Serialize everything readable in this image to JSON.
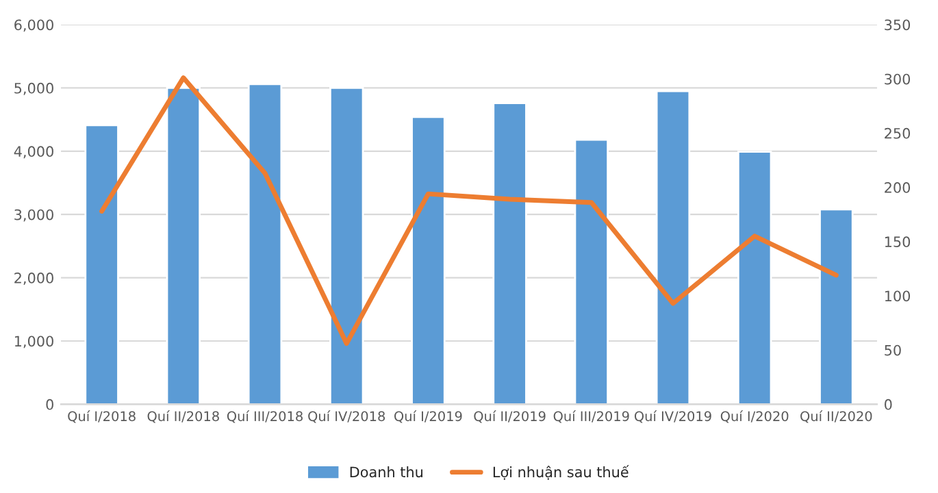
{
  "chart_data": {
    "type": "bar",
    "categories": [
      "Quí I/2018",
      "Quí II/2018",
      "Quí III/2018",
      "Quí IV/2018",
      "Quí I/2019",
      "Quí II/2019",
      "Quí III/2019",
      "Quí IV/2019",
      "Quí I/2020",
      "Quí II/2020"
    ],
    "series": [
      {
        "name": "Doanh thu",
        "color": "#5b9bd5",
        "values": [
          4410,
          5000,
          5060,
          5000,
          4540,
          4760,
          4180,
          4950,
          3990,
          3080
        ]
      },
      {
        "name": "Lợi nhuận sau thuế",
        "type": "line",
        "axis": "y2",
        "color": "#ed7d31",
        "values": [
          178,
          301,
          213,
          56,
          194,
          189,
          186,
          93,
          155,
          119
        ]
      }
    ],
    "ylim": [
      0,
      6000
    ],
    "yticks": [
      {
        "value": 0,
        "label": "0"
      },
      {
        "value": 1000,
        "label": "1,000"
      },
      {
        "value": 2000,
        "label": "2,000"
      },
      {
        "value": 3000,
        "label": "3,000"
      },
      {
        "value": 4000,
        "label": "4,000"
      },
      {
        "value": 5000,
        "label": "5,000"
      },
      {
        "value": 6000,
        "label": "6,000"
      }
    ],
    "y2lim": [
      0,
      350
    ],
    "y2ticks": [
      0,
      50,
      100,
      150,
      200,
      250,
      300,
      350
    ],
    "grid": "y",
    "legend": "bottom"
  }
}
